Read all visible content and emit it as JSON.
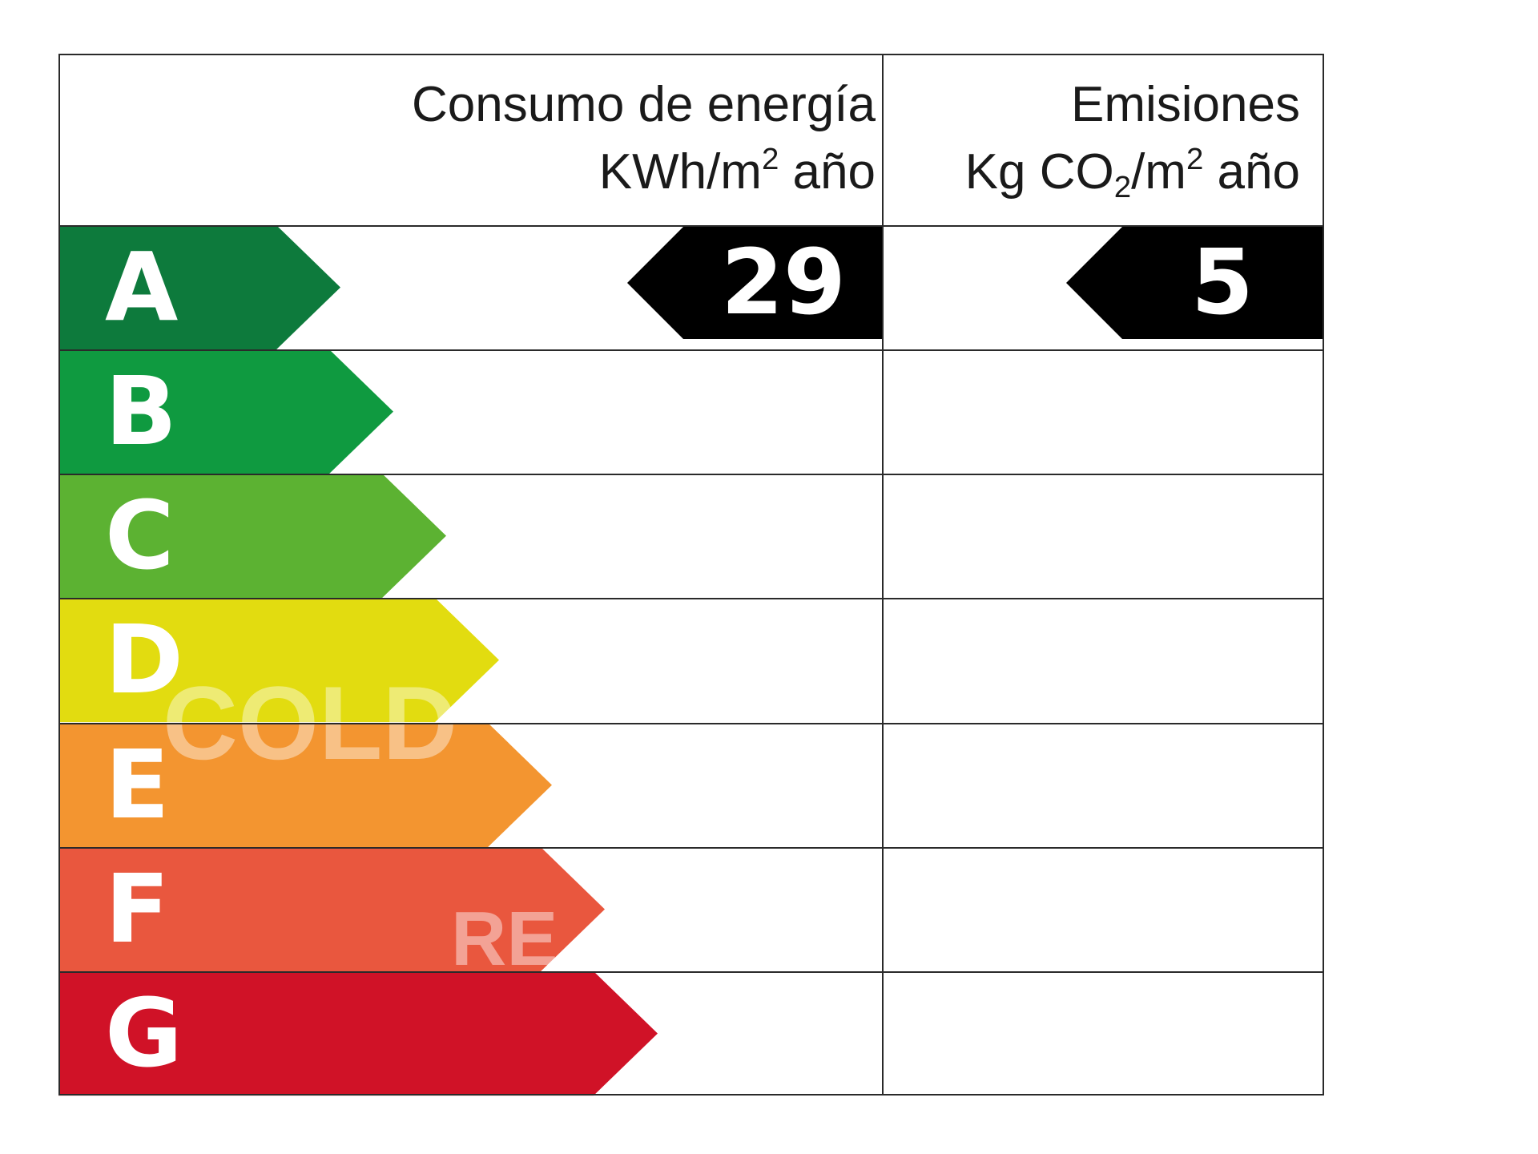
{
  "header": {
    "energy_title": "Consumo de energía",
    "energy_unit_a": "KWh/m",
    "energy_unit_sup": "2",
    "energy_unit_b": " año",
    "emissions_title": "Emisiones",
    "emissions_unit_a": "Kg CO",
    "emissions_unit_sub": "2",
    "emissions_unit_b": "/m",
    "emissions_unit_sup": "2",
    "emissions_unit_c": " año"
  },
  "classes": [
    {
      "letter": "A",
      "color": "#0d7a3c"
    },
    {
      "letter": "B",
      "color": "#0f9a40"
    },
    {
      "letter": "C",
      "color": "#5cb232"
    },
    {
      "letter": "D",
      "color": "#e2dc10"
    },
    {
      "letter": "E",
      "color": "#f39530"
    },
    {
      "letter": "F",
      "color": "#e9573e"
    },
    {
      "letter": "G",
      "color": "#d01227"
    }
  ],
  "rating": {
    "energy_value": "29",
    "emissions_value": "5",
    "class": "A",
    "tag_color": "#000000"
  },
  "watermark": {
    "line1": "COLD",
    "line2": "RE"
  }
}
